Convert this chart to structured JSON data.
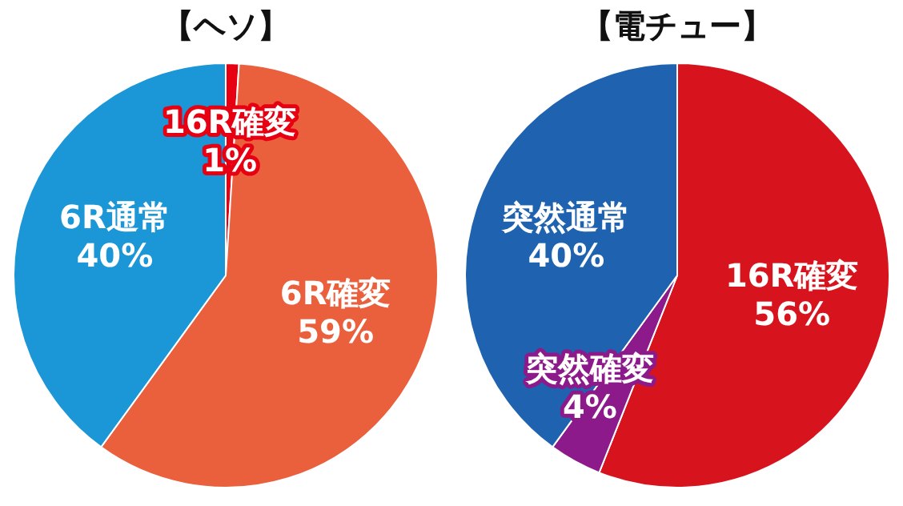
{
  "chart_data": [
    {
      "type": "pie",
      "title": "【ヘソ】",
      "categories": [
        "16R確変",
        "6R確変",
        "6R通常"
      ],
      "values": [
        1,
        59,
        40
      ],
      "colors": [
        "#e60012",
        "#ea5f3c",
        "#1b96d6"
      ],
      "value_labels": [
        "1%",
        "59%",
        "40%"
      ],
      "legend": false
    },
    {
      "type": "pie",
      "title": "【電チュー】",
      "categories": [
        "16R確変",
        "突然確変",
        "突然通常"
      ],
      "values": [
        56,
        4,
        40
      ],
      "colors": [
        "#d7141e",
        "#8c1a8a",
        "#1f63b0"
      ],
      "value_labels": [
        "56%",
        "4%",
        "40%"
      ],
      "legend": false
    }
  ]
}
